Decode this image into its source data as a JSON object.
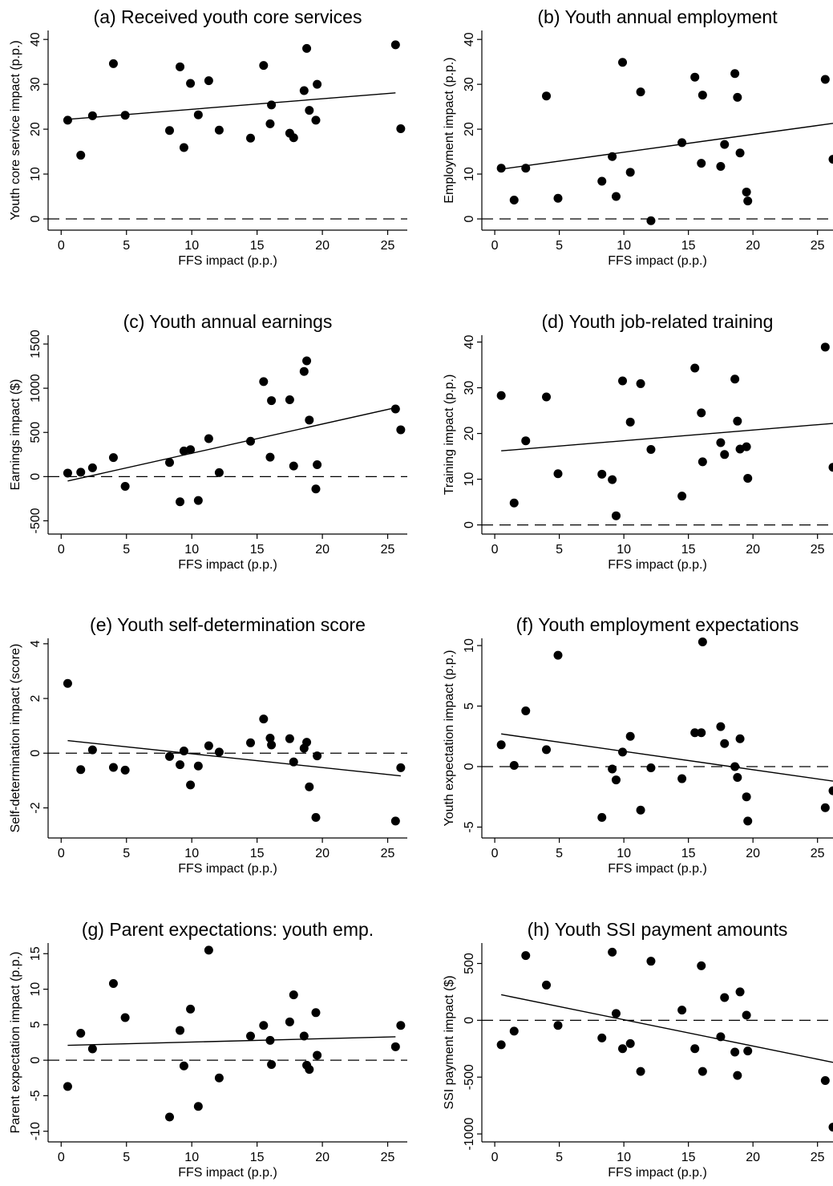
{
  "chart_data": [
    {
      "id": "a",
      "type": "scatter",
      "title": "(a) Received youth core services",
      "xlabel": "FFS impact (p.p.)",
      "ylabel": "Youth core service impact (p.p.)",
      "xlim": [
        -1,
        26.5
      ],
      "ylim": [
        -2.5,
        42
      ],
      "xticks": [
        0,
        5,
        10,
        15,
        20,
        25
      ],
      "yticks": [
        0,
        10,
        20,
        30,
        40
      ],
      "reference_line": 0,
      "fit_line": [
        [
          0.5,
          22.2
        ],
        [
          25.6,
          28.1
        ]
      ],
      "points": [
        [
          0.5,
          22
        ],
        [
          1.5,
          14.2
        ],
        [
          2.4,
          23
        ],
        [
          4,
          34.6
        ],
        [
          4.9,
          23.1
        ],
        [
          8.3,
          19.7
        ],
        [
          9.1,
          33.9
        ],
        [
          9.4,
          15.9
        ],
        [
          9.9,
          30.2
        ],
        [
          10.5,
          23.2
        ],
        [
          11.3,
          30.8
        ],
        [
          12.1,
          19.8
        ],
        [
          14.5,
          18
        ],
        [
          15.5,
          34.2
        ],
        [
          16,
          21.2
        ],
        [
          16.1,
          25.4
        ],
        [
          17.5,
          19.1
        ],
        [
          17.8,
          18.1
        ],
        [
          18.6,
          28.6
        ],
        [
          18.8,
          38
        ],
        [
          19,
          24.2
        ],
        [
          19.5,
          22
        ],
        [
          19.6,
          30
        ],
        [
          25.6,
          38.8
        ],
        [
          26,
          20.1
        ]
      ]
    },
    {
      "id": "b",
      "type": "scatter",
      "title": "(b) Youth annual employment",
      "xlabel": "FFS impact (p.p.)",
      "ylabel": "Employment impact (p.p.)",
      "xlim": [
        -1,
        26.2
      ],
      "ylim": [
        -2.5,
        42
      ],
      "xticks": [
        0,
        5,
        10,
        15,
        20,
        25
      ],
      "yticks": [
        0,
        10,
        20,
        30,
        40
      ],
      "reference_line": 0,
      "fit_line": [
        [
          0.5,
          11.1
        ],
        [
          26.2,
          21.3
        ]
      ],
      "points": [
        [
          0.5,
          11.3
        ],
        [
          1.5,
          4.2
        ],
        [
          2.4,
          11.3
        ],
        [
          4,
          27.4
        ],
        [
          4.9,
          4.6
        ],
        [
          8.3,
          8.4
        ],
        [
          9.1,
          13.9
        ],
        [
          9.4,
          5
        ],
        [
          9.9,
          34.9
        ],
        [
          10.5,
          10.4
        ],
        [
          11.3,
          28.3
        ],
        [
          12.1,
          -0.4
        ],
        [
          14.5,
          17
        ],
        [
          15.5,
          31.6
        ],
        [
          16,
          12.4
        ],
        [
          16.1,
          27.6
        ],
        [
          17.5,
          11.7
        ],
        [
          17.8,
          16.6
        ],
        [
          18.6,
          32.4
        ],
        [
          18.8,
          27.1
        ],
        [
          19,
          14.7
        ],
        [
          19.5,
          6
        ],
        [
          19.6,
          4
        ],
        [
          25.6,
          31.1
        ],
        [
          26.2,
          13.3
        ]
      ]
    },
    {
      "id": "c",
      "type": "scatter",
      "title": "(c) Youth annual earnings",
      "xlabel": "FFS impact (p.p.)",
      "ylabel": "Earnings impact ($)",
      "xlim": [
        -1,
        26.5
      ],
      "ylim": [
        -650,
        1600
      ],
      "xticks": [
        0,
        5,
        10,
        15,
        20,
        25
      ],
      "yticks": [
        -500,
        0,
        500,
        1000,
        1500
      ],
      "reference_line": 0,
      "fit_line": [
        [
          0.5,
          -50
        ],
        [
          25.6,
          780
        ]
      ],
      "points": [
        [
          0.5,
          40
        ],
        [
          1.5,
          50
        ],
        [
          2.4,
          100
        ],
        [
          4,
          215
        ],
        [
          4.9,
          -110
        ],
        [
          8.3,
          160
        ],
        [
          9.1,
          -285
        ],
        [
          9.4,
          290
        ],
        [
          9.9,
          305
        ],
        [
          10.5,
          -270
        ],
        [
          11.3,
          430
        ],
        [
          12.1,
          45
        ],
        [
          14.5,
          400
        ],
        [
          15.5,
          1075
        ],
        [
          16,
          220
        ],
        [
          16.1,
          860
        ],
        [
          17.5,
          870
        ],
        [
          17.8,
          120
        ],
        [
          18.6,
          1190
        ],
        [
          18.8,
          1310
        ],
        [
          19,
          640
        ],
        [
          19.5,
          -140
        ],
        [
          19.6,
          135
        ],
        [
          25.6,
          765
        ],
        [
          26,
          530
        ]
      ]
    },
    {
      "id": "d",
      "type": "scatter",
      "title": "(d) Youth job-related training",
      "xlabel": "FFS impact (p.p.)",
      "ylabel": "Training impact (p.p.)",
      "xlim": [
        -1,
        26.2
      ],
      "ylim": [
        -2,
        41.5
      ],
      "xticks": [
        0,
        5,
        10,
        15,
        20,
        25
      ],
      "yticks": [
        0,
        10,
        20,
        30,
        40
      ],
      "reference_line": 0,
      "fit_line": [
        [
          0.5,
          16.2
        ],
        [
          26.2,
          22.2
        ]
      ],
      "points": [
        [
          0.5,
          28.3
        ],
        [
          1.5,
          4.8
        ],
        [
          2.4,
          18.4
        ],
        [
          4,
          28
        ],
        [
          4.9,
          11.2
        ],
        [
          8.3,
          11.1
        ],
        [
          9.1,
          9.9
        ],
        [
          9.4,
          2
        ],
        [
          9.9,
          31.5
        ],
        [
          10.5,
          22.5
        ],
        [
          11.3,
          30.9
        ],
        [
          12.1,
          16.5
        ],
        [
          14.5,
          6.3
        ],
        [
          15.5,
          34.3
        ],
        [
          16,
          24.5
        ],
        [
          16.1,
          13.8
        ],
        [
          17.5,
          18
        ],
        [
          17.8,
          15.4
        ],
        [
          18.6,
          31.9
        ],
        [
          18.8,
          22.7
        ],
        [
          19,
          16.6
        ],
        [
          19.5,
          17.1
        ],
        [
          19.6,
          10.2
        ],
        [
          25.6,
          38.9
        ],
        [
          26.2,
          12.6
        ]
      ]
    },
    {
      "id": "e",
      "type": "scatter",
      "title": "(e) Youth self-determination score",
      "xlabel": "FFS impact (p.p.)",
      "ylabel": "Self-determination impact (score)",
      "xlim": [
        -1,
        26.5
      ],
      "ylim": [
        -3.1,
        4.2
      ],
      "xticks": [
        0,
        5,
        10,
        15,
        20,
        25
      ],
      "yticks": [
        -2,
        0,
        2,
        4
      ],
      "reference_line": 0,
      "fit_line": [
        [
          0.5,
          0.46
        ],
        [
          26,
          -0.83
        ]
      ],
      "points": [
        [
          0.5,
          2.55
        ],
        [
          1.5,
          -0.6
        ],
        [
          2.4,
          0.12
        ],
        [
          4,
          -0.52
        ],
        [
          4.9,
          -0.62
        ],
        [
          8.3,
          -0.12
        ],
        [
          9.1,
          -0.42
        ],
        [
          9.4,
          0.08
        ],
        [
          9.9,
          -1.16
        ],
        [
          10.5,
          -0.47
        ],
        [
          11.3,
          0.27
        ],
        [
          12.1,
          0.04
        ],
        [
          14.5,
          0.38
        ],
        [
          15.5,
          1.25
        ],
        [
          16,
          0.55
        ],
        [
          16.1,
          0.3
        ],
        [
          17.5,
          0.53
        ],
        [
          17.8,
          -0.32
        ],
        [
          18.6,
          0.18
        ],
        [
          18.8,
          0.4
        ],
        [
          19,
          -1.23
        ],
        [
          19.5,
          -2.35
        ],
        [
          19.6,
          -0.1
        ],
        [
          25.6,
          -2.48
        ],
        [
          26,
          -0.53
        ]
      ]
    },
    {
      "id": "f",
      "type": "scatter",
      "title": "(f) Youth employment expectations",
      "xlabel": "FFS impact (p.p.)",
      "ylabel": "Youth expectation impact (p.p.)",
      "xlim": [
        -1,
        26.2
      ],
      "ylim": [
        -5.9,
        10.6
      ],
      "xticks": [
        0,
        5,
        10,
        15,
        20,
        25
      ],
      "yticks": [
        -5,
        0,
        5,
        10
      ],
      "reference_line": 0,
      "fit_line": [
        [
          0.5,
          2.7
        ],
        [
          26.2,
          -1.2
        ]
      ],
      "points": [
        [
          0.5,
          1.8
        ],
        [
          1.5,
          0.1
        ],
        [
          2.4,
          4.6
        ],
        [
          4,
          1.4
        ],
        [
          4.9,
          9.2
        ],
        [
          8.3,
          -4.2
        ],
        [
          9.1,
          -0.2
        ],
        [
          9.4,
          -1.1
        ],
        [
          9.9,
          1.2
        ],
        [
          10.5,
          2.5
        ],
        [
          11.3,
          -3.6
        ],
        [
          12.1,
          -0.1
        ],
        [
          14.5,
          -1
        ],
        [
          15.5,
          2.8
        ],
        [
          16,
          2.8
        ],
        [
          16.1,
          10.3
        ],
        [
          17.5,
          3.3
        ],
        [
          17.8,
          1.9
        ],
        [
          18.6,
          0
        ],
        [
          18.8,
          -0.9
        ],
        [
          19,
          2.3
        ],
        [
          19.5,
          -2.5
        ],
        [
          19.6,
          -4.5
        ],
        [
          25.6,
          -3.4
        ],
        [
          26.2,
          -2
        ]
      ]
    },
    {
      "id": "g",
      "type": "scatter",
      "title": "(g) Parent expectations: youth emp.",
      "xlabel": "FFS impact (p.p.)",
      "ylabel": "Parent expectation impact (p.p.)",
      "xlim": [
        -1,
        26.5
      ],
      "ylim": [
        -11.5,
        16.5
      ],
      "xticks": [
        0,
        5,
        10,
        15,
        20,
        25
      ],
      "yticks": [
        -10,
        -5,
        0,
        5,
        10,
        15
      ],
      "reference_line": 0,
      "fit_line": [
        [
          0.5,
          2.1
        ],
        [
          25.6,
          3.3
        ]
      ],
      "points": [
        [
          0.5,
          -3.7
        ],
        [
          1.5,
          3.8
        ],
        [
          2.4,
          1.6
        ],
        [
          4,
          10.8
        ],
        [
          4.9,
          6
        ],
        [
          8.3,
          -8
        ],
        [
          9.1,
          4.2
        ],
        [
          9.4,
          -0.8
        ],
        [
          9.9,
          7.2
        ],
        [
          10.5,
          -6.5
        ],
        [
          11.3,
          15.5
        ],
        [
          12.1,
          -2.5
        ],
        [
          14.5,
          3.4
        ],
        [
          15.5,
          4.9
        ],
        [
          16,
          2.8
        ],
        [
          16.1,
          -0.6
        ],
        [
          17.5,
          5.4
        ],
        [
          17.8,
          9.2
        ],
        [
          18.6,
          3.4
        ],
        [
          18.8,
          -0.7
        ],
        [
          19,
          -1.3
        ],
        [
          19.5,
          6.7
        ],
        [
          19.6,
          0.7
        ],
        [
          25.6,
          1.9
        ],
        [
          26,
          4.9
        ]
      ]
    },
    {
      "id": "h",
      "type": "scatter",
      "title": "(h) Youth SSI payment amounts",
      "xlabel": "FFS impact (p.p.)",
      "ylabel": "SSI payment impact ($)",
      "xlim": [
        -1,
        26.2
      ],
      "ylim": [
        -1070,
        680
      ],
      "xticks": [
        0,
        5,
        10,
        15,
        20,
        25
      ],
      "yticks": [
        -1000,
        -500,
        0,
        500
      ],
      "reference_line": 0,
      "fit_line": [
        [
          0.5,
          225
        ],
        [
          26.2,
          -370
        ]
      ],
      "points": [
        [
          0.5,
          -215
        ],
        [
          1.5,
          -95
        ],
        [
          2.4,
          570
        ],
        [
          4,
          310
        ],
        [
          4.9,
          -45
        ],
        [
          8.3,
          -155
        ],
        [
          9.1,
          600
        ],
        [
          9.4,
          60
        ],
        [
          9.9,
          -250
        ],
        [
          10.5,
          -205
        ],
        [
          11.3,
          -450
        ],
        [
          12.1,
          520
        ],
        [
          14.5,
          90
        ],
        [
          15.5,
          -250
        ],
        [
          16,
          480
        ],
        [
          16.1,
          -450
        ],
        [
          17.5,
          -145
        ],
        [
          17.8,
          200
        ],
        [
          18.6,
          -280
        ],
        [
          18.8,
          -485
        ],
        [
          19,
          250
        ],
        [
          19.5,
          45
        ],
        [
          19.6,
          -270
        ],
        [
          25.6,
          -530
        ],
        [
          26.2,
          -940
        ]
      ]
    }
  ]
}
